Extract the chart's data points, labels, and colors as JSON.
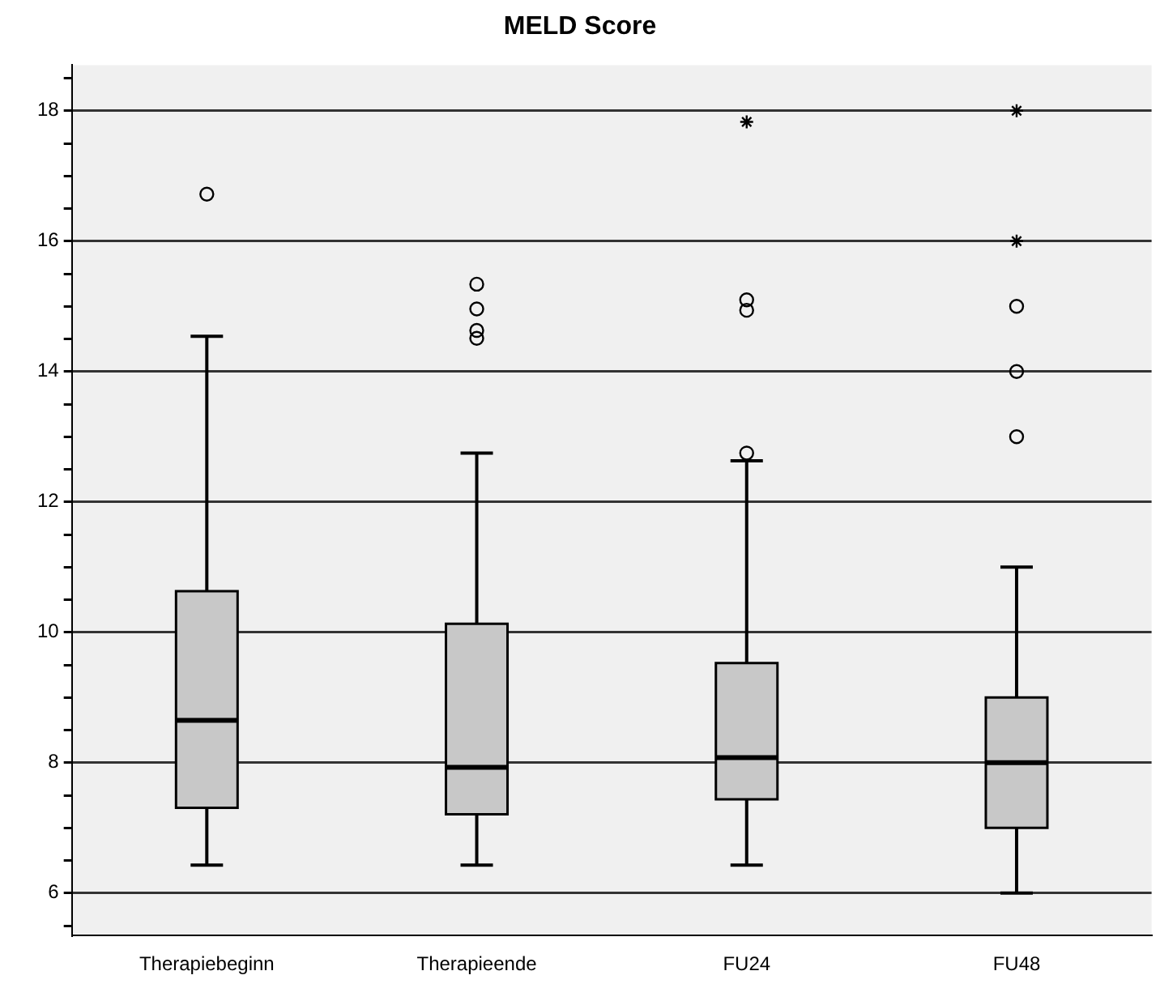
{
  "chart_data": {
    "type": "box",
    "title": "MELD Score",
    "categories": [
      "Therapiebeginn",
      "Therapieende",
      "FU24",
      "FU48"
    ],
    "boxes": [
      {
        "low": 6.43,
        "q1": 7.31,
        "median": 8.65,
        "q3": 10.63,
        "high": 14.54,
        "outliers": [
          16.72
        ]
      },
      {
        "low": 6.43,
        "q1": 7.21,
        "median": 7.93,
        "q3": 10.13,
        "high": 12.75,
        "outliers": [
          14.51,
          14.63,
          14.96,
          15.34
        ]
      },
      {
        "low": 6.43,
        "q1": 7.44,
        "median": 8.08,
        "q3": 9.53,
        "high": 12.63,
        "outliers": [
          12.75,
          14.94,
          15.1
        ]
      },
      {
        "low": 6.0,
        "q1": 7.0,
        "median": 8.0,
        "q3": 9.0,
        "high": 11.0,
        "outliers": [
          13,
          14,
          15
        ]
      }
    ],
    "series": [
      {
        "type": "scatter",
        "marker": "cross",
        "color": "#000000",
        "x": [
          "FU24",
          "FU48",
          "FU48"
        ],
        "values": [
          17.83,
          16,
          18
        ]
      }
    ],
    "color": "#c8c8c8",
    "ylim": [
      5.35,
      18.7
    ],
    "yticks": [
      {
        "value": 5.5,
        "label": null
      },
      6,
      {
        "value": 6.5,
        "label": null
      },
      {
        "value": 7,
        "label": null
      },
      {
        "value": 7.5,
        "label": null
      },
      8,
      {
        "value": 8.5,
        "label": null
      },
      {
        "value": 9,
        "label": null
      },
      {
        "value": 9.5,
        "label": null
      },
      10,
      {
        "value": 10.5,
        "label": null
      },
      {
        "value": 11,
        "label": null
      },
      {
        "value": 11.5,
        "label": null
      },
      12,
      {
        "value": 12.5,
        "label": null
      },
      {
        "value": 13,
        "label": null
      },
      {
        "value": 13.5,
        "label": null
      },
      14,
      {
        "value": 14.5,
        "label": null
      },
      {
        "value": 15,
        "label": null
      },
      {
        "value": 15.5,
        "label": null
      },
      16,
      {
        "value": 16.5,
        "label": null
      },
      {
        "value": 17,
        "label": null
      },
      {
        "value": 17.5,
        "label": null
      },
      18,
      {
        "value": 18.5,
        "label": null
      }
    ],
    "grid": "y",
    "legend": false
  }
}
